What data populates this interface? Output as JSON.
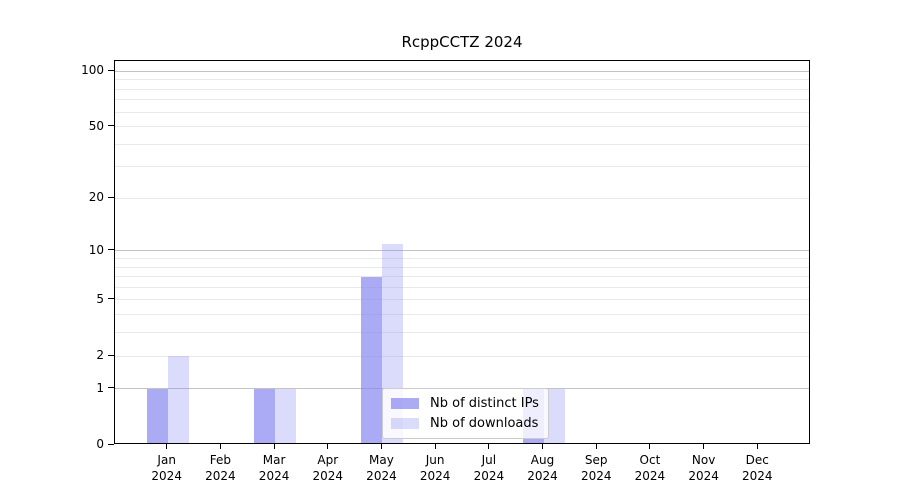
{
  "chart_data": {
    "type": "bar",
    "title": "RcppCCTZ 2024",
    "year_label": "2024",
    "categories": [
      "Jan",
      "Feb",
      "Mar",
      "Apr",
      "May",
      "Jun",
      "Jul",
      "Aug",
      "Sep",
      "Oct",
      "Nov",
      "Dec"
    ],
    "series": [
      {
        "name": "Nb of distinct IPs",
        "color": "rgba(130,130,240,0.68)",
        "values": [
          1,
          0,
          1,
          0,
          7,
          0,
          0,
          1,
          0,
          0,
          0,
          0
        ]
      },
      {
        "name": "Nb of downloads",
        "color": "rgba(130,130,240,0.29)",
        "values": [
          2,
          0,
          1,
          0,
          11,
          0,
          0,
          1,
          0,
          0,
          0,
          0
        ]
      }
    ],
    "yaxis": {
      "scale": "log1p",
      "tick_labels": [
        0,
        1,
        2,
        5,
        10,
        20,
        50,
        100
      ],
      "major_gridlines": [
        1,
        10,
        100
      ],
      "minor_gridlines": [
        2,
        3,
        4,
        5,
        6,
        7,
        8,
        9,
        20,
        30,
        40,
        50,
        60,
        70,
        80,
        90
      ],
      "range": [
        0,
        114
      ]
    },
    "xlabel": "",
    "ylabel": "",
    "grid": true,
    "legend_position": "lower-center"
  },
  "colors": {
    "grid_major": "#c3c3c3",
    "grid_minor": "#e9e9e9",
    "axis": "#000000",
    "background": "#ffffff"
  }
}
